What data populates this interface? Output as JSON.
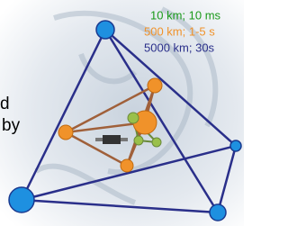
{
  "legend": {
    "items": [
      "10 km; 10 ms",
      "500 km; 1-5 s",
      "5000 km; 30s"
    ]
  },
  "side_text": [
    "d",
    "by"
  ]
}
